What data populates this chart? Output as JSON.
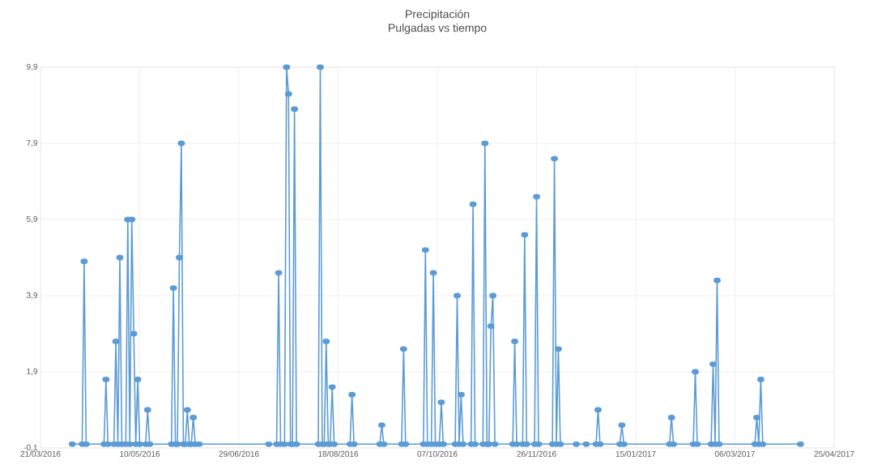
{
  "chart_data": {
    "type": "line",
    "title": "Precipitación",
    "subtitle": "Pulgadas vs tiempo",
    "x": [
      "2016-04-06",
      "2016-04-11",
      "2016-04-12",
      "2016-04-13",
      "2016-04-22",
      "2016-04-23",
      "2016-04-24",
      "2016-04-27",
      "2016-04-28",
      "2016-04-29",
      "2016-04-30",
      "2016-05-01",
      "2016-05-03",
      "2016-05-04",
      "2016-05-05",
      "2016-05-06",
      "2016-05-07",
      "2016-05-08",
      "2016-05-09",
      "2016-05-10",
      "2016-05-13",
      "2016-05-14",
      "2016-05-15",
      "2016-05-26",
      "2016-05-27",
      "2016-05-28",
      "2016-05-29",
      "2016-05-30",
      "2016-05-31",
      "2016-06-01",
      "2016-06-02",
      "2016-06-03",
      "2016-06-04",
      "2016-06-05",
      "2016-06-06",
      "2016-06-07",
      "2016-06-09",
      "2016-07-14",
      "2016-07-18",
      "2016-07-19",
      "2016-07-20",
      "2016-07-22",
      "2016-07-23",
      "2016-07-24",
      "2016-07-25",
      "2016-07-26",
      "2016-07-27",
      "2016-07-28",
      "2016-08-08",
      "2016-08-09",
      "2016-08-10",
      "2016-08-11",
      "2016-08-12",
      "2016-08-13",
      "2016-08-14",
      "2016-08-15",
      "2016-08-16",
      "2016-08-24",
      "2016-08-25",
      "2016-08-26",
      "2016-09-08",
      "2016-09-09",
      "2016-09-10",
      "2016-09-19",
      "2016-09-20",
      "2016-09-21",
      "2016-09-30",
      "2016-10-01",
      "2016-10-02",
      "2016-10-04",
      "2016-10-05",
      "2016-10-06",
      "2016-10-08",
      "2016-10-09",
      "2016-10-10",
      "2016-10-16",
      "2016-10-17",
      "2016-10-18",
      "2016-10-19",
      "2016-10-20",
      "2016-10-24",
      "2016-10-25",
      "2016-10-26",
      "2016-10-30",
      "2016-10-31",
      "2016-11-01",
      "2016-11-02",
      "2016-11-03",
      "2016-11-04",
      "2016-11-05",
      "2016-11-14",
      "2016-11-15",
      "2016-11-16",
      "2016-11-19",
      "2016-11-20",
      "2016-11-21",
      "2016-11-25",
      "2016-11-26",
      "2016-11-27",
      "2016-12-04",
      "2016-12-05",
      "2016-12-06",
      "2016-12-07",
      "2016-12-08",
      "2016-12-16",
      "2016-12-21",
      "2016-12-26",
      "2016-12-27",
      "2016-12-28",
      "2017-01-07",
      "2017-01-08",
      "2017-01-09",
      "2017-02-01",
      "2017-02-02",
      "2017-02-03",
      "2017-02-13",
      "2017-02-14",
      "2017-02-15",
      "2017-02-22",
      "2017-02-23",
      "2017-02-24",
      "2017-02-25",
      "2017-02-26",
      "2017-03-16",
      "2017-03-17",
      "2017-03-18",
      "2017-03-19",
      "2017-03-20",
      "2017-04-08"
    ],
    "values": [
      0,
      0,
      4.8,
      0,
      0,
      1.7,
      0,
      0,
      2.7,
      0,
      4.9,
      0,
      0,
      5.9,
      0,
      5.9,
      2.9,
      0,
      1.7,
      0,
      0,
      0.9,
      0,
      0,
      4.1,
      0,
      0,
      4.9,
      7.9,
      0,
      0,
      0.9,
      0,
      0,
      0.7,
      0,
      0,
      0,
      0,
      4.5,
      0,
      0,
      9.9,
      9.2,
      0,
      0,
      8.8,
      0,
      0,
      9.9,
      0,
      0,
      2.7,
      0,
      0,
      1.5,
      0,
      0,
      1.3,
      0,
      0,
      0.5,
      0,
      0,
      2.5,
      0,
      0,
      5.1,
      0,
      0,
      4.5,
      0,
      0,
      1.1,
      0,
      0,
      3.9,
      0,
      1.3,
      0,
      0,
      6.3,
      0,
      0,
      7.9,
      0,
      0,
      3.1,
      3.9,
      0,
      0,
      2.7,
      0,
      0,
      5.5,
      0,
      0,
      6.5,
      0,
      0,
      7.5,
      0,
      2.5,
      0,
      0,
      0,
      0,
      0.9,
      0,
      0,
      0.5,
      0,
      0,
      0.7,
      0,
      0,
      1.9,
      0,
      0,
      2.1,
      0,
      4.3,
      0,
      0,
      0.7,
      0,
      1.7,
      0,
      0
    ],
    "color": "#5b9bd5",
    "marker": "circle",
    "line_style": "solid",
    "grid": true,
    "xlim": [
      "2016-03-21",
      "2017-04-25"
    ],
    "xticks": [
      {
        "value": "2016-03-21",
        "label": "21/03/2016"
      },
      {
        "value": "2016-05-10",
        "label": "10/05/2016"
      },
      {
        "value": "2016-06-29",
        "label": "29/06/2016"
      },
      {
        "value": "2016-08-18",
        "label": "18/08/2016"
      },
      {
        "value": "2016-10-07",
        "label": "07/10/2016"
      },
      {
        "value": "2016-11-26",
        "label": "26/11/2016"
      },
      {
        "value": "2017-01-15",
        "label": "15/01/2017"
      },
      {
        "value": "2017-03-06",
        "label": "06/03/2017"
      },
      {
        "value": "2017-04-25",
        "label": "25/04/2017"
      }
    ],
    "ylim": [
      -0.1,
      9.9
    ],
    "yticks": [
      {
        "value": -0.1,
        "label": "-0,1"
      },
      {
        "value": 1.9,
        "label": "1,9"
      },
      {
        "value": 3.9,
        "label": "3,9"
      },
      {
        "value": 5.9,
        "label": "5,9"
      },
      {
        "value": 7.9,
        "label": "7,9"
      },
      {
        "value": 9.9,
        "label": "9,9"
      }
    ]
  }
}
